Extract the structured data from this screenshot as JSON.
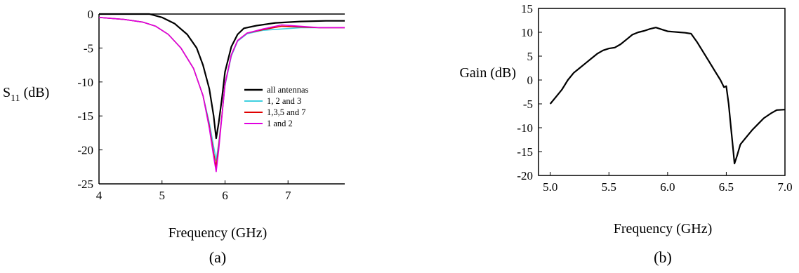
{
  "panels": {
    "a": {
      "label": "(a)"
    },
    "b": {
      "label": "(b)"
    }
  },
  "chart_data": [
    {
      "type": "line",
      "xlabel": "Frequency (GHz)",
      "ylabel_main": "S",
      "ylabel_sub": "11",
      "ylabel_rest": " (dB)",
      "xlim": [
        4,
        7.9
      ],
      "ylim": [
        -25,
        0
      ],
      "x_ticks": [
        4,
        5,
        6,
        7
      ],
      "y_ticks": [
        0,
        -5,
        -10,
        -15,
        -20,
        -25
      ],
      "grid": false,
      "legend_position": "center-right",
      "series": [
        {
          "name": "all antennas",
          "color": "#000000",
          "points": [
            [
              4.0,
              0
            ],
            [
              4.5,
              0
            ],
            [
              4.8,
              0
            ],
            [
              5.0,
              -0.5
            ],
            [
              5.2,
              -1.4
            ],
            [
              5.4,
              -3.0
            ],
            [
              5.55,
              -5.0
            ],
            [
              5.65,
              -7.5
            ],
            [
              5.75,
              -11.0
            ],
            [
              5.82,
              -15.0
            ],
            [
              5.86,
              -18.3
            ],
            [
              5.9,
              -16.0
            ],
            [
              5.95,
              -12.5
            ],
            [
              6.0,
              -8.5
            ],
            [
              6.1,
              -4.8
            ],
            [
              6.2,
              -3.0
            ],
            [
              6.3,
              -2.1
            ],
            [
              6.5,
              -1.7
            ],
            [
              6.8,
              -1.3
            ],
            [
              7.2,
              -1.1
            ],
            [
              7.6,
              -1.0
            ],
            [
              7.9,
              -1.0
            ]
          ]
        },
        {
          "name": "1, 2 and 3",
          "color": "#40d0e0",
          "points": [
            [
              4.0,
              -0.5
            ],
            [
              4.4,
              -0.8
            ],
            [
              4.7,
              -1.2
            ],
            [
              4.9,
              -1.8
            ],
            [
              5.1,
              -3.0
            ],
            [
              5.3,
              -5.0
            ],
            [
              5.5,
              -8.0
            ],
            [
              5.65,
              -12.0
            ],
            [
              5.75,
              -16.0
            ],
            [
              5.82,
              -19.5
            ],
            [
              5.86,
              -21.5
            ],
            [
              5.9,
              -19.0
            ],
            [
              5.95,
              -15.0
            ],
            [
              6.0,
              -10.5
            ],
            [
              6.1,
              -6.2
            ],
            [
              6.2,
              -4.0
            ],
            [
              6.35,
              -2.9
            ],
            [
              6.6,
              -2.4
            ],
            [
              6.9,
              -2.2
            ],
            [
              7.2,
              -2.0
            ],
            [
              7.5,
              -2.0
            ],
            [
              7.9,
              -2.0
            ]
          ]
        },
        {
          "name": "1,3,5 and 7",
          "color": "#e00000",
          "points": [
            [
              4.0,
              -0.5
            ],
            [
              4.4,
              -0.8
            ],
            [
              4.7,
              -1.2
            ],
            [
              4.9,
              -1.8
            ],
            [
              5.1,
              -3.0
            ],
            [
              5.3,
              -5.0
            ],
            [
              5.5,
              -8.0
            ],
            [
              5.65,
              -12.0
            ],
            [
              5.75,
              -16.5
            ],
            [
              5.82,
              -20.5
            ],
            [
              5.86,
              -22.5
            ],
            [
              5.9,
              -19.5
            ],
            [
              5.95,
              -15.0
            ],
            [
              6.0,
              -10.3
            ],
            [
              6.1,
              -6.0
            ],
            [
              6.2,
              -3.9
            ],
            [
              6.35,
              -2.8
            ],
            [
              6.6,
              -2.3
            ],
            [
              6.9,
              -1.8
            ],
            [
              7.2,
              -1.9
            ],
            [
              7.5,
              -2.0
            ],
            [
              7.9,
              -2.0
            ]
          ]
        },
        {
          "name": "1 and 2",
          "color": "#e000e0",
          "points": [
            [
              4.0,
              -0.5
            ],
            [
              4.4,
              -0.8
            ],
            [
              4.7,
              -1.2
            ],
            [
              4.9,
              -1.8
            ],
            [
              5.1,
              -3.0
            ],
            [
              5.3,
              -5.0
            ],
            [
              5.5,
              -8.0
            ],
            [
              5.65,
              -12.0
            ],
            [
              5.75,
              -16.8
            ],
            [
              5.82,
              -21.0
            ],
            [
              5.86,
              -23.2
            ],
            [
              5.9,
              -20.0
            ],
            [
              5.95,
              -15.2
            ],
            [
              6.0,
              -10.3
            ],
            [
              6.1,
              -6.0
            ],
            [
              6.2,
              -3.9
            ],
            [
              6.35,
              -2.8
            ],
            [
              6.6,
              -2.2
            ],
            [
              6.9,
              -1.6
            ],
            [
              7.2,
              -1.8
            ],
            [
              7.5,
              -2.0
            ],
            [
              7.9,
              -2.0
            ]
          ]
        }
      ]
    },
    {
      "type": "line",
      "xlabel": "Frequency (GHz)",
      "ylabel": "Gain (dB)",
      "xlim": [
        4.9,
        7.0
      ],
      "ylim": [
        -20,
        15
      ],
      "x_ticks": [
        "5.0",
        "5.5",
        "6.0",
        "6.5",
        "7.0"
      ],
      "y_ticks": [
        15,
        10,
        5,
        0,
        -5,
        -10,
        -15,
        -20
      ],
      "grid": false,
      "series": [
        {
          "color": "#000000",
          "points": [
            [
              5.0,
              -5.0
            ],
            [
              5.05,
              -3.5
            ],
            [
              5.1,
              -2.0
            ],
            [
              5.15,
              0.0
            ],
            [
              5.2,
              1.5
            ],
            [
              5.25,
              2.5
            ],
            [
              5.3,
              3.5
            ],
            [
              5.35,
              4.5
            ],
            [
              5.4,
              5.5
            ],
            [
              5.45,
              6.2
            ],
            [
              5.5,
              6.6
            ],
            [
              5.55,
              6.8
            ],
            [
              5.6,
              7.5
            ],
            [
              5.65,
              8.5
            ],
            [
              5.7,
              9.5
            ],
            [
              5.75,
              10.0
            ],
            [
              5.8,
              10.3
            ],
            [
              5.85,
              10.7
            ],
            [
              5.9,
              11.0
            ],
            [
              5.95,
              10.6
            ],
            [
              6.0,
              10.2
            ],
            [
              6.05,
              10.1
            ],
            [
              6.1,
              10.0
            ],
            [
              6.15,
              9.9
            ],
            [
              6.2,
              9.7
            ],
            [
              6.25,
              8.0
            ],
            [
              6.3,
              6.0
            ],
            [
              6.35,
              4.0
            ],
            [
              6.4,
              2.0
            ],
            [
              6.45,
              0.0
            ],
            [
              6.48,
              -1.5
            ],
            [
              6.5,
              -1.3
            ],
            [
              6.52,
              -5.0
            ],
            [
              6.54,
              -10.0
            ],
            [
              6.56,
              -15.0
            ],
            [
              6.57,
              -17.5
            ],
            [
              6.59,
              -16.0
            ],
            [
              6.62,
              -13.5
            ],
            [
              6.67,
              -12.0
            ],
            [
              6.72,
              -10.5
            ],
            [
              6.78,
              -9.0
            ],
            [
              6.82,
              -8.0
            ],
            [
              6.88,
              -7.0
            ],
            [
              6.93,
              -6.3
            ],
            [
              7.0,
              -6.2
            ]
          ]
        }
      ]
    }
  ]
}
